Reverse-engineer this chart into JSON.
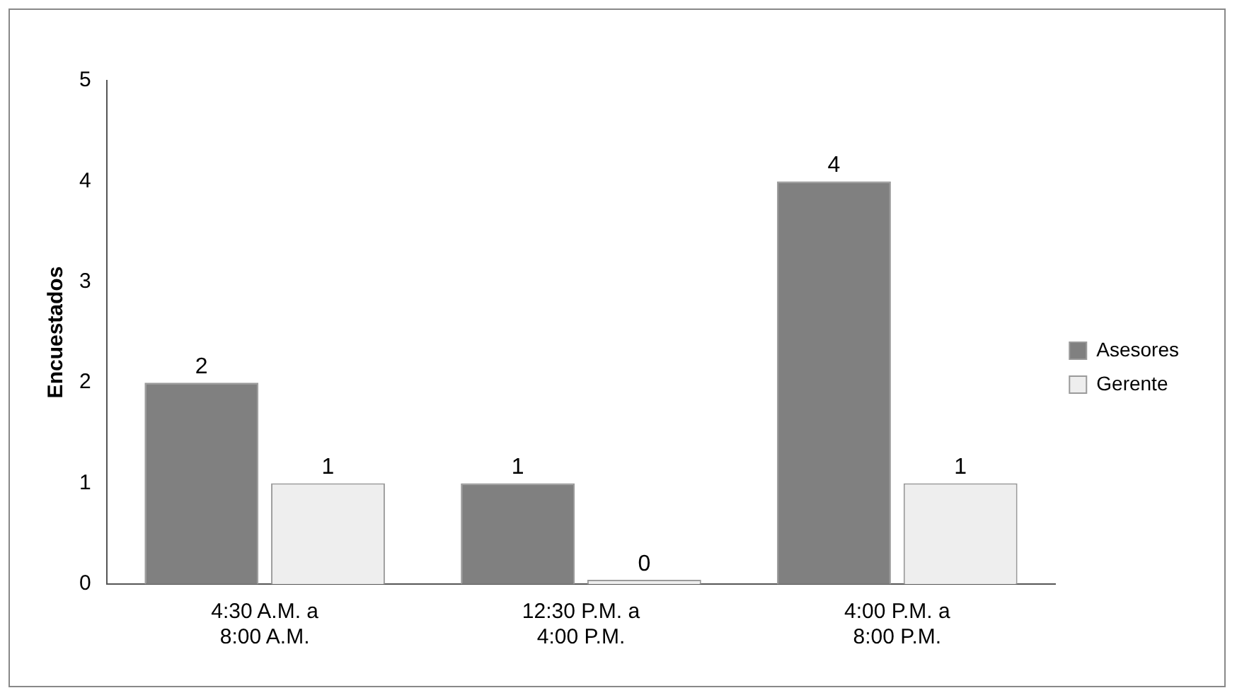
{
  "chart_data": {
    "type": "bar",
    "ylabel": "Encuestados",
    "categories": [
      "4:30 A.M. a\n8:00 A.M.",
      "12:30 P.M. a\n4:00 P.M.",
      "4:00 P.M. a\n8:00 P.M."
    ],
    "series": [
      {
        "name": "Asesores",
        "color": "#808080",
        "values": [
          2,
          1,
          4
        ]
      },
      {
        "name": "Gerente",
        "color": "#eeeeee",
        "values": [
          1,
          0,
          1
        ]
      }
    ],
    "ylim": [
      0,
      5
    ],
    "yticks": [
      0,
      1,
      2,
      3,
      4,
      5
    ],
    "grid": false,
    "legend": "right",
    "data_labels": true
  }
}
